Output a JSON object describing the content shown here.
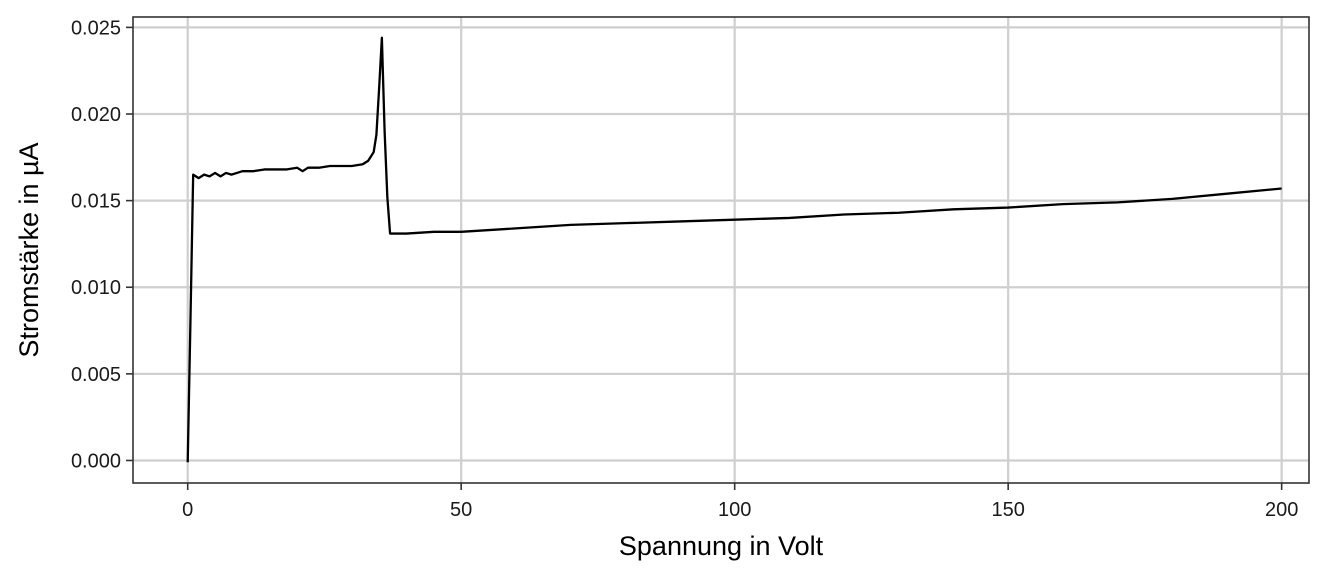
{
  "chart_data": {
    "type": "line",
    "title": "",
    "xlabel": "Spannung in Volt",
    "ylabel": "Stromstärke in µA",
    "xlim": [
      -10,
      205
    ],
    "ylim": [
      -0.0013,
      0.0256
    ],
    "x_ticks": [
      0,
      50,
      100,
      150,
      200
    ],
    "x_tick_labels": [
      "0",
      "50",
      "100",
      "150",
      "200"
    ],
    "y_ticks": [
      0,
      0.005,
      0.01,
      0.015,
      0.02,
      0.025
    ],
    "y_tick_labels": [
      "0.000",
      "0.005",
      "0.010",
      "0.015",
      "0.020",
      "0.025"
    ],
    "grid": true,
    "legend": "none",
    "line_color": "#000000",
    "series": [
      {
        "x": [
          0,
          0.5,
          1,
          2,
          3,
          4,
          5,
          6,
          7,
          8,
          9,
          10,
          12,
          14,
          16,
          18,
          20,
          21,
          22,
          24,
          26,
          28,
          30,
          32,
          33,
          34,
          34.5,
          35,
          35.5,
          36,
          36.5,
          37,
          38,
          40,
          45,
          50,
          60,
          70,
          80,
          90,
          100,
          110,
          120,
          130,
          140,
          150,
          160,
          170,
          180,
          190,
          200
        ],
        "y": [
          -0.0001,
          0.008,
          0.0165,
          0.0163,
          0.0165,
          0.0164,
          0.0166,
          0.0164,
          0.0166,
          0.0165,
          0.0166,
          0.0167,
          0.0167,
          0.0168,
          0.0168,
          0.0168,
          0.0169,
          0.0167,
          0.0169,
          0.0169,
          0.017,
          0.017,
          0.017,
          0.0171,
          0.0173,
          0.0178,
          0.0188,
          0.0215,
          0.0244,
          0.019,
          0.0152,
          0.0131,
          0.0131,
          0.0131,
          0.0132,
          0.0132,
          0.0134,
          0.0136,
          0.0137,
          0.0138,
          0.0139,
          0.014,
          0.0142,
          0.0143,
          0.0145,
          0.0146,
          0.0148,
          0.0149,
          0.0151,
          0.0154,
          0.0157
        ]
      }
    ]
  }
}
